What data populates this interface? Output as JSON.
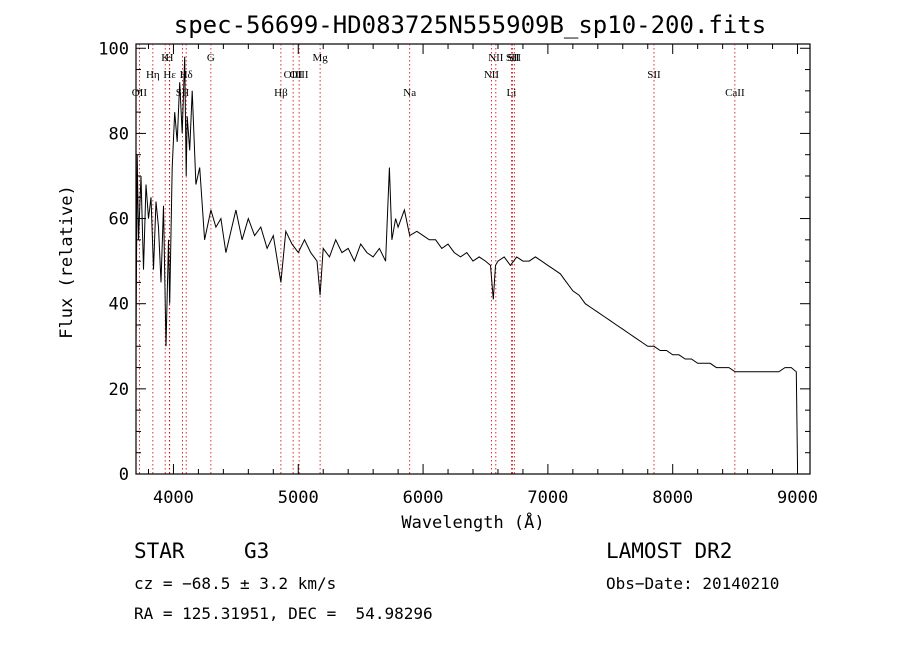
{
  "chart_data": {
    "type": "line",
    "title": "spec-56699-HD083725N555909B_sp10-200.fits",
    "xlabel": "Wavelength (Å)",
    "ylabel": "Flux (relative)",
    "xlim": [
      3700,
      9100
    ],
    "ylim": [
      0,
      101
    ],
    "xticks": [
      4000,
      5000,
      6000,
      7000,
      8000,
      9000
    ],
    "yticks": [
      0,
      20,
      40,
      60,
      80,
      100
    ],
    "line_color": "#000000",
    "marker_color": "#cc0000",
    "series": [
      {
        "x": [
          3700,
          3710,
          3720,
          3740,
          3760,
          3780,
          3800,
          3820,
          3840,
          3860,
          3880,
          3900,
          3920,
          3940,
          3960,
          3970,
          3990,
          4010,
          4030,
          4050,
          4070,
          4090,
          4102,
          4110,
          4130,
          4150,
          4180,
          4210,
          4250,
          4300,
          4340,
          4380,
          4420,
          4460,
          4500,
          4550,
          4600,
          4650,
          4700,
          4750,
          4800,
          4861,
          4900,
          4950,
          5000,
          5050,
          5100,
          5150,
          5175,
          5200,
          5250,
          5300,
          5350,
          5400,
          5450,
          5500,
          5550,
          5600,
          5650,
          5700,
          5730,
          5750,
          5780,
          5800,
          5850,
          5893,
          5950,
          6000,
          6050,
          6100,
          6150,
          6200,
          6250,
          6300,
          6350,
          6400,
          6450,
          6500,
          6540,
          6563,
          6580,
          6600,
          6650,
          6700,
          6750,
          6800,
          6850,
          6900,
          6950,
          7000,
          7050,
          7100,
          7150,
          7200,
          7250,
          7300,
          7350,
          7400,
          7450,
          7500,
          7550,
          7600,
          7650,
          7700,
          7750,
          7800,
          7850,
          7900,
          7950,
          8000,
          8050,
          8100,
          8150,
          8200,
          8250,
          8300,
          8350,
          8400,
          8450,
          8500,
          8550,
          8600,
          8650,
          8700,
          8750,
          8800,
          8850,
          8900,
          8950,
          8990,
          9000
        ],
        "y": [
          30,
          75,
          55,
          70,
          48,
          68,
          60,
          65,
          48,
          64,
          58,
          45,
          63,
          30,
          55,
          40,
          72,
          85,
          78,
          92,
          80,
          98,
          70,
          84,
          76,
          90,
          68,
          72,
          55,
          62,
          58,
          60,
          52,
          57,
          62,
          55,
          60,
          56,
          58,
          53,
          56,
          45,
          57,
          54,
          52,
          55,
          52,
          50,
          42,
          53,
          51,
          55,
          52,
          53,
          50,
          54,
          52,
          51,
          53,
          50,
          72,
          55,
          60,
          58,
          62,
          56,
          57,
          56,
          55,
          55,
          53,
          54,
          52,
          51,
          52,
          50,
          51,
          50,
          49,
          41,
          49,
          50,
          51,
          49,
          51,
          50,
          50,
          51,
          50,
          49,
          48,
          47,
          45,
          43,
          42,
          40,
          39,
          38,
          37,
          36,
          35,
          34,
          33,
          32,
          31,
          30,
          30,
          29,
          29,
          28,
          28,
          27,
          27,
          26,
          26,
          26,
          25,
          25,
          25,
          24,
          24,
          24,
          24,
          24,
          24,
          24,
          24,
          25,
          25,
          24,
          2
        ]
      }
    ],
    "lines": [
      {
        "label": "OII",
        "x": 3727,
        "tier": 3
      },
      {
        "label": "Hη",
        "x": 3835,
        "tier": 2
      },
      {
        "label": "H",
        "x": 3968,
        "tier": 1
      },
      {
        "label": "Hε",
        "x": 3970,
        "tier": 2
      },
      {
        "label": "K",
        "x": 3934,
        "tier": 1
      },
      {
        "label": "SII",
        "x": 4072,
        "tier": 3
      },
      {
        "label": "Hδ",
        "x": 4102,
        "tier": 2
      },
      {
        "label": "G",
        "x": 4300,
        "tier": 1
      },
      {
        "label": "Hβ",
        "x": 4861,
        "tier": 3
      },
      {
        "label": "OIII",
        "x": 4959,
        "tier": 2
      },
      {
        "label": "OIII",
        "x": 5007,
        "tier": 2
      },
      {
        "label": "Mg",
        "x": 5175,
        "tier": 1
      },
      {
        "label": "Na",
        "x": 5893,
        "tier": 3
      },
      {
        "label": "NII",
        "x": 6548,
        "tier": 2
      },
      {
        "label": "NII",
        "x": 6583,
        "tier": 1
      },
      {
        "label": "Li",
        "x": 6708,
        "tier": 3
      },
      {
        "label": "SII",
        "x": 6717,
        "tier": 1
      },
      {
        "label": "SII",
        "x": 6731,
        "tier": 1
      },
      {
        "label": "SII",
        "x": 7850,
        "tier": 2
      },
      {
        "label": "CaII",
        "x": 8498,
        "tier": 3
      }
    ]
  },
  "info": {
    "class": "STAR",
    "subclass": "G3",
    "survey": "LAMOST DR2",
    "cz": "cz = −68.5 ± 3.2 km/s",
    "obs_date": "Obs−Date: 20140210",
    "coords": "RA = 125.31951, DEC =  54.98296"
  }
}
